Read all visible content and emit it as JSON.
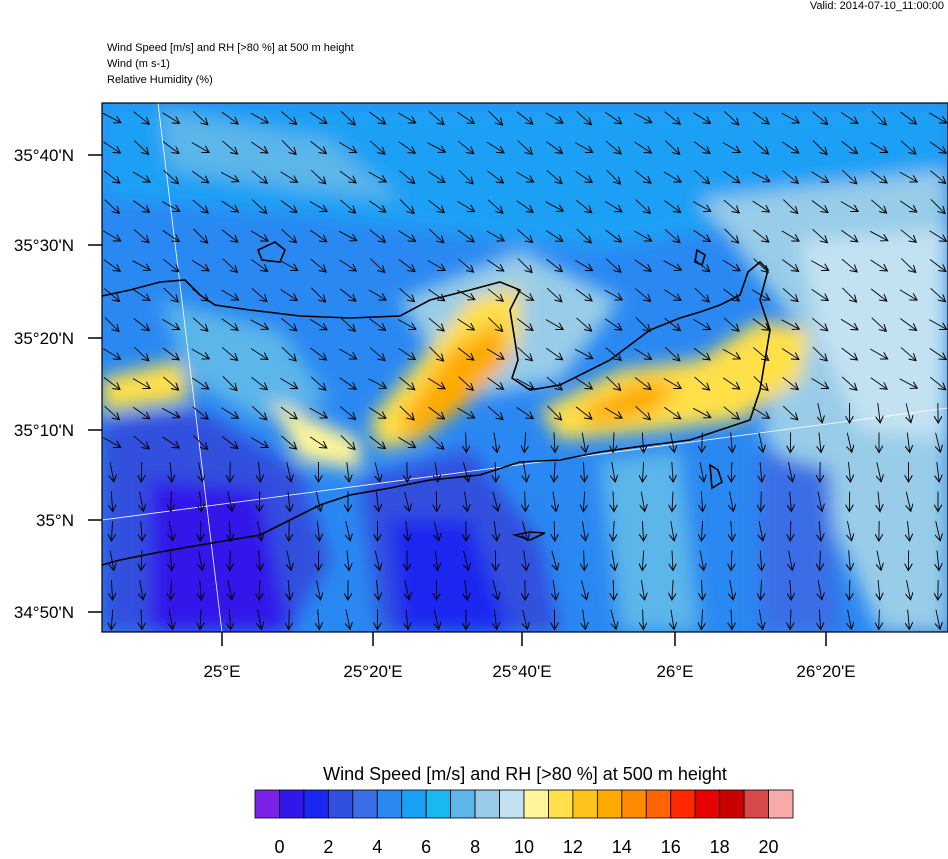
{
  "valid": "Valid: 2014-07-10_11:00:00",
  "title_lines": [
    "Wind Speed [m/s] and RH [>80 %] at 500 m height",
    "Wind   (m s-1)",
    "Relative Humidity   (%)"
  ],
  "lat_labels": [
    "35°40'N",
    "35°30'N",
    "35°20'N",
    "35°10'N",
    "35°N",
    "34°50'N"
  ],
  "lon_labels": [
    "25°E",
    "25°20'E",
    "25°40'E",
    "26°E",
    "26°20'E"
  ],
  "colorbar": {
    "title": "Wind Speed [m/s] and RH [>80 %] at 500 m height",
    "colors": [
      "#7a22e8",
      "#3018ea",
      "#1a28f0",
      "#3050de",
      "#3a6ee6",
      "#2a88f2",
      "#1aa0f5",
      "#18b8f2",
      "#5cb6ea",
      "#98cce8",
      "#c2e2f2",
      "#fff59a",
      "#ffe04a",
      "#ffc41a",
      "#ffab00",
      "#ff8a00",
      "#ff6400",
      "#ff2800",
      "#e60000",
      "#c80000",
      "#d84a4a",
      "#f6aaaa"
    ],
    "ticks": [
      0,
      2,
      4,
      6,
      8,
      10,
      12,
      14,
      16,
      18,
      20
    ]
  }
}
